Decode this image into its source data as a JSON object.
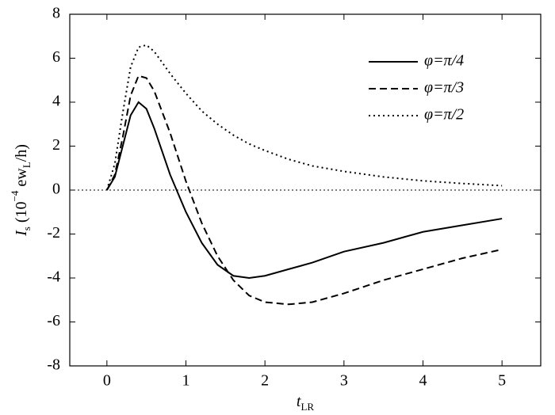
{
  "chart_data": {
    "type": "line",
    "xlabel": [
      {
        "text": "t",
        "italic": true
      },
      {
        "text": "LR",
        "shift": "sub"
      }
    ],
    "ylabel": [
      {
        "text": "I",
        "italic": true
      },
      {
        "text": "s",
        "shift": "sub"
      },
      {
        "text": " (10"
      },
      {
        "text": "−4",
        "shift": "super"
      },
      {
        "text": " ew"
      },
      {
        "text": "L",
        "shift": "sub"
      },
      {
        "text": "/h)"
      }
    ],
    "x": [
      0,
      0.1,
      0.2,
      0.3,
      0.4,
      0.5,
      0.6,
      0.8,
      1.0,
      1.2,
      1.4,
      1.6,
      1.8,
      2.0,
      2.3,
      2.6,
      3.0,
      3.5,
      4.0,
      4.5,
      5.0
    ],
    "series": [
      {
        "name": "φ=π/4",
        "color": "#000000",
        "dash": "solid",
        "values": [
          0,
          0.6,
          2.0,
          3.4,
          4.0,
          3.7,
          2.8,
          0.7,
          -1.0,
          -2.4,
          -3.4,
          -3.9,
          -4.0,
          -3.9,
          -3.6,
          -3.3,
          -2.8,
          -2.4,
          -1.9,
          -1.6,
          -1.3
        ]
      },
      {
        "name": "φ=π/3",
        "color": "#000000",
        "dash": "dashed",
        "values": [
          0,
          0.7,
          2.4,
          4.3,
          5.2,
          5.1,
          4.5,
          2.6,
          0.4,
          -1.5,
          -3.0,
          -4.1,
          -4.8,
          -5.1,
          -5.2,
          -5.1,
          -4.7,
          -4.1,
          -3.6,
          -3.1,
          -2.7
        ]
      },
      {
        "name": "φ=π/2",
        "color": "#000000",
        "dash": "dotted",
        "values": [
          0,
          1.2,
          3.5,
          5.6,
          6.5,
          6.6,
          6.3,
          5.3,
          4.4,
          3.6,
          3.0,
          2.5,
          2.1,
          1.8,
          1.4,
          1.1,
          0.85,
          0.6,
          0.42,
          0.3,
          0.2
        ]
      }
    ],
    "hline": 0,
    "xlim": [
      -0.47,
      5.49
    ],
    "xticks": [
      0,
      1,
      2,
      3,
      4,
      5
    ],
    "ylim": [
      -8,
      8
    ],
    "yticks": [
      -8,
      -6,
      -4,
      -2,
      0,
      2,
      4,
      6,
      8
    ],
    "legend": "upper-right"
  }
}
